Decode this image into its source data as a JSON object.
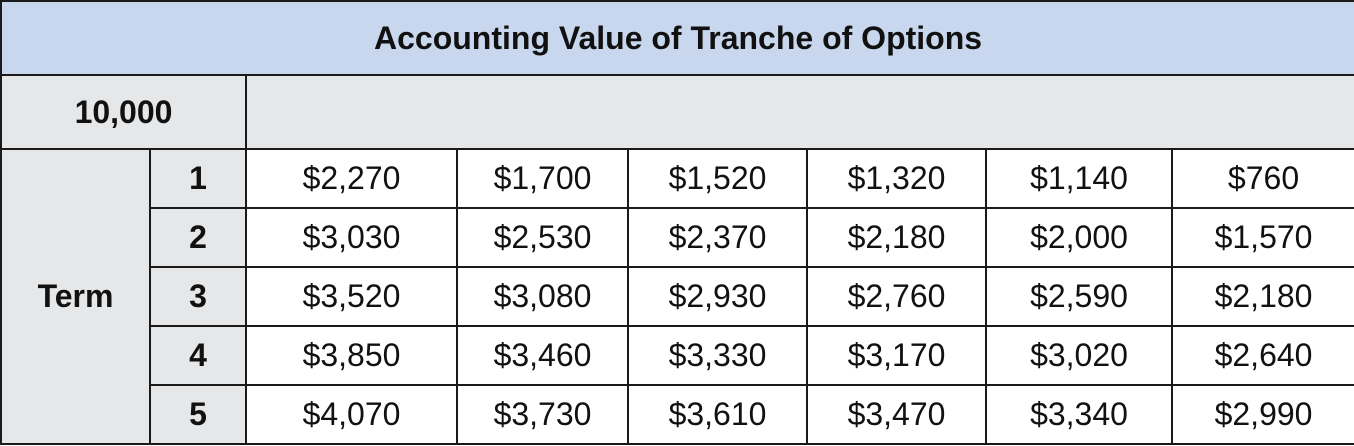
{
  "table": {
    "title": "Accounting Value of Tranche of Options",
    "corner": "10,000",
    "row_header": "Term",
    "rows": [
      {
        "term": "1",
        "values": [
          "$2,270",
          "$1,700",
          "$1,520",
          "$1,320",
          "$1,140",
          "$760"
        ]
      },
      {
        "term": "2",
        "values": [
          "$3,030",
          "$2,530",
          "$2,370",
          "$2,180",
          "$2,000",
          "$1,570"
        ]
      },
      {
        "term": "3",
        "values": [
          "$3,520",
          "$3,080",
          "$2,930",
          "$2,760",
          "$2,590",
          "$2,180"
        ]
      },
      {
        "term": "4",
        "values": [
          "$3,850",
          "$3,460",
          "$3,330",
          "$3,170",
          "$3,020",
          "$2,640"
        ]
      },
      {
        "term": "5",
        "values": [
          "$4,070",
          "$3,730",
          "$3,610",
          "$3,470",
          "$3,340",
          "$2,990"
        ]
      }
    ]
  }
}
